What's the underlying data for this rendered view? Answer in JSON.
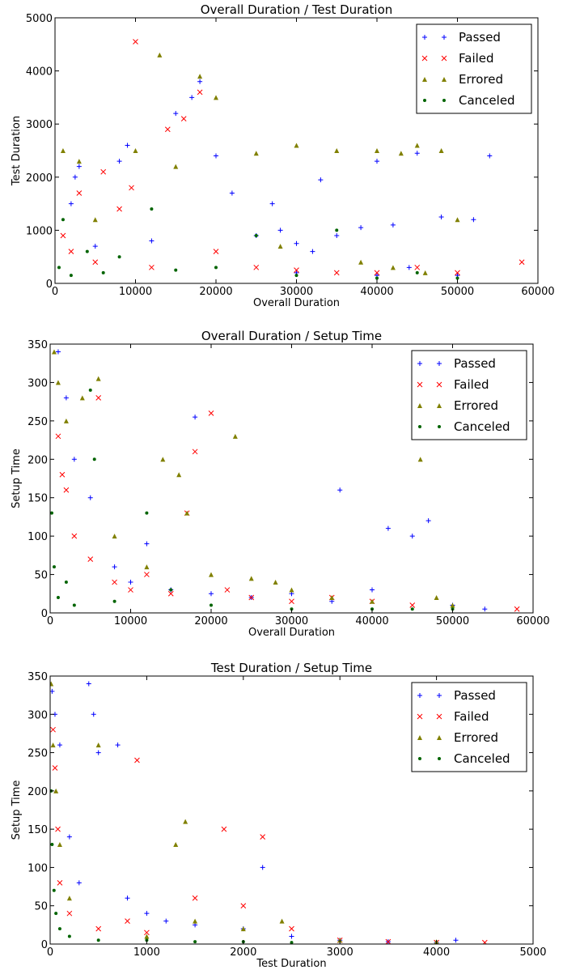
{
  "chart_data": [
    {
      "type": "scatter",
      "title": "Overall Duration / Test Duration",
      "xlabel": "Overall Duration",
      "ylabel": "Test Duration",
      "xlim": [
        0,
        60000
      ],
      "ylim": [
        0,
        5000
      ],
      "xticks": [
        "0",
        "10000",
        "20000",
        "30000",
        "40000",
        "50000",
        "60000"
      ],
      "yticks": [
        "0",
        "1000",
        "2000",
        "3000",
        "4000",
        "5000"
      ],
      "grid": false,
      "legend_position": "top-right",
      "series": [
        {
          "name": "Passed",
          "marker": "cross",
          "color": "#0000ff",
          "points": [
            [
              2000,
              1500
            ],
            [
              2500,
              2000
            ],
            [
              3000,
              2200
            ],
            [
              8000,
              2300
            ],
            [
              9000,
              2600
            ],
            [
              15000,
              3200
            ],
            [
              17000,
              3500
            ],
            [
              18000,
              3800
            ],
            [
              20000,
              2400
            ],
            [
              22000,
              1700
            ],
            [
              25000,
              900
            ],
            [
              28000,
              1000
            ],
            [
              30000,
              750
            ],
            [
              32000,
              600
            ],
            [
              35000,
              900
            ],
            [
              38000,
              1050
            ],
            [
              40000,
              2300
            ],
            [
              42000,
              1100
            ],
            [
              45000,
              2450
            ],
            [
              48000,
              1250
            ],
            [
              50000,
              150
            ],
            [
              52000,
              1200
            ],
            [
              54000,
              2400
            ],
            [
              30000,
              200
            ],
            [
              40000,
              150
            ],
            [
              12000,
              800
            ],
            [
              5000,
              700
            ],
            [
              27000,
              1500
            ],
            [
              33000,
              1950
            ],
            [
              44000,
              300
            ]
          ]
        },
        {
          "name": "Failed",
          "marker": "x",
          "color": "#ff0000",
          "points": [
            [
              1000,
              900
            ],
            [
              2000,
              600
            ],
            [
              3000,
              1700
            ],
            [
              6000,
              2100
            ],
            [
              8000,
              1400
            ],
            [
              9500,
              1800
            ],
            [
              10000,
              4550
            ],
            [
              14000,
              2900
            ],
            [
              16000,
              3100
            ],
            [
              18000,
              3600
            ],
            [
              20000,
              600
            ],
            [
              25000,
              300
            ],
            [
              30000,
              250
            ],
            [
              35000,
              200
            ],
            [
              40000,
              200
            ],
            [
              45000,
              300
            ],
            [
              50000,
              200
            ],
            [
              58000,
              400
            ],
            [
              5000,
              400
            ],
            [
              12000,
              300
            ]
          ]
        },
        {
          "name": "Errored",
          "marker": "triangle",
          "color": "#808000",
          "points": [
            [
              1000,
              2500
            ],
            [
              3000,
              2300
            ],
            [
              5000,
              1200
            ],
            [
              10000,
              2500
            ],
            [
              13000,
              4300
            ],
            [
              15000,
              2200
            ],
            [
              18000,
              3900
            ],
            [
              20000,
              3500
            ],
            [
              25000,
              2450
            ],
            [
              30000,
              2600
            ],
            [
              35000,
              2500
            ],
            [
              40000,
              2500
            ],
            [
              43000,
              2450
            ],
            [
              45000,
              2600
            ],
            [
              50000,
              1200
            ],
            [
              48000,
              2500
            ],
            [
              28000,
              700
            ],
            [
              38000,
              400
            ],
            [
              42000,
              300
            ],
            [
              46000,
              200
            ]
          ]
        },
        {
          "name": "Canceled",
          "marker": "dot",
          "color": "#006400",
          "points": [
            [
              500,
              300
            ],
            [
              1000,
              1200
            ],
            [
              2000,
              150
            ],
            [
              4000,
              600
            ],
            [
              6000,
              200
            ],
            [
              8000,
              500
            ],
            [
              12000,
              1400
            ],
            [
              20000,
              300
            ],
            [
              30000,
              150
            ],
            [
              40000,
              100
            ],
            [
              45000,
              200
            ],
            [
              50000,
              100
            ],
            [
              25000,
              900
            ],
            [
              15000,
              250
            ],
            [
              35000,
              1000
            ]
          ]
        }
      ]
    },
    {
      "type": "scatter",
      "title": "Overall Duration / Setup Time",
      "xlabel": "Overall Duration",
      "ylabel": "Setup Time",
      "xlim": [
        0,
        60000
      ],
      "ylim": [
        0,
        350
      ],
      "xticks": [
        "0",
        "10000",
        "20000",
        "30000",
        "40000",
        "50000",
        "60000"
      ],
      "yticks": [
        "0",
        "50",
        "100",
        "150",
        "200",
        "250",
        "300",
        "350"
      ],
      "grid": false,
      "legend_position": "top-right",
      "series": [
        {
          "name": "Passed",
          "marker": "cross",
          "color": "#0000ff",
          "points": [
            [
              1000,
              340
            ],
            [
              2000,
              280
            ],
            [
              3000,
              200
            ],
            [
              5000,
              150
            ],
            [
              8000,
              60
            ],
            [
              10000,
              40
            ],
            [
              15000,
              30
            ],
            [
              20000,
              25
            ],
            [
              25000,
              20
            ],
            [
              30000,
              25
            ],
            [
              35000,
              15
            ],
            [
              36000,
              160
            ],
            [
              40000,
              30
            ],
            [
              42000,
              110
            ],
            [
              45000,
              100
            ],
            [
              47000,
              120
            ],
            [
              50000,
              10
            ],
            [
              54000,
              5
            ],
            [
              18000,
              255
            ],
            [
              12000,
              90
            ]
          ]
        },
        {
          "name": "Failed",
          "marker": "x",
          "color": "#ff0000",
          "points": [
            [
              1000,
              230
            ],
            [
              1500,
              180
            ],
            [
              2000,
              160
            ],
            [
              3000,
              100
            ],
            [
              5000,
              70
            ],
            [
              8000,
              40
            ],
            [
              10000,
              30
            ],
            [
              15000,
              25
            ],
            [
              17000,
              130
            ],
            [
              20000,
              260
            ],
            [
              22000,
              30
            ],
            [
              25000,
              20
            ],
            [
              30000,
              15
            ],
            [
              35000,
              20
            ],
            [
              40000,
              15
            ],
            [
              45000,
              10
            ],
            [
              58000,
              5
            ],
            [
              6000,
              280
            ],
            [
              18000,
              210
            ],
            [
              12000,
              50
            ]
          ]
        },
        {
          "name": "Errored",
          "marker": "triangle",
          "color": "#808000",
          "points": [
            [
              500,
              340
            ],
            [
              1000,
              300
            ],
            [
              2000,
              250
            ],
            [
              4000,
              280
            ],
            [
              6000,
              305
            ],
            [
              8000,
              100
            ],
            [
              12000,
              60
            ],
            [
              14000,
              200
            ],
            [
              16000,
              180
            ],
            [
              17000,
              130
            ],
            [
              23000,
              230
            ],
            [
              25000,
              45
            ],
            [
              30000,
              30
            ],
            [
              35000,
              20
            ],
            [
              40000,
              15
            ],
            [
              46000,
              200
            ],
            [
              48000,
              20
            ],
            [
              50000,
              10
            ],
            [
              20000,
              50
            ],
            [
              28000,
              40
            ]
          ]
        },
        {
          "name": "Canceled",
          "marker": "dot",
          "color": "#006400",
          "points": [
            [
              200,
              130
            ],
            [
              500,
              60
            ],
            [
              1000,
              20
            ],
            [
              2000,
              40
            ],
            [
              3000,
              10
            ],
            [
              5000,
              290
            ],
            [
              5500,
              200
            ],
            [
              8000,
              15
            ],
            [
              12000,
              130
            ],
            [
              15000,
              30
            ],
            [
              20000,
              10
            ],
            [
              30000,
              5
            ],
            [
              40000,
              5
            ],
            [
              45000,
              5
            ],
            [
              50000,
              5
            ]
          ]
        }
      ]
    },
    {
      "type": "scatter",
      "title": "Test Duration / Setup Time",
      "xlabel": "Test Duration",
      "ylabel": "Setup Time",
      "xlim": [
        0,
        5000
      ],
      "ylim": [
        0,
        350
      ],
      "xticks": [
        "0",
        "1000",
        "2000",
        "3000",
        "4000",
        "5000"
      ],
      "yticks": [
        "0",
        "50",
        "100",
        "150",
        "200",
        "250",
        "300",
        "350"
      ],
      "grid": false,
      "legend_position": "top-right",
      "series": [
        {
          "name": "Passed",
          "marker": "cross",
          "color": "#0000ff",
          "points": [
            [
              20,
              330
            ],
            [
              50,
              300
            ],
            [
              100,
              260
            ],
            [
              200,
              140
            ],
            [
              300,
              80
            ],
            [
              400,
              340
            ],
            [
              450,
              300
            ],
            [
              500,
              250
            ],
            [
              700,
              260
            ],
            [
              800,
              60
            ],
            [
              1000,
              40
            ],
            [
              1200,
              30
            ],
            [
              1500,
              25
            ],
            [
              2000,
              20
            ],
            [
              2200,
              100
            ],
            [
              2500,
              10
            ],
            [
              3000,
              5
            ],
            [
              3500,
              3
            ],
            [
              4000,
              2
            ],
            [
              4200,
              5
            ]
          ]
        },
        {
          "name": "Failed",
          "marker": "x",
          "color": "#ff0000",
          "points": [
            [
              30,
              280
            ],
            [
              50,
              230
            ],
            [
              80,
              150
            ],
            [
              100,
              80
            ],
            [
              200,
              40
            ],
            [
              500,
              20
            ],
            [
              800,
              30
            ],
            [
              900,
              240
            ],
            [
              1000,
              15
            ],
            [
              1500,
              60
            ],
            [
              1800,
              150
            ],
            [
              2000,
              50
            ],
            [
              2200,
              140
            ],
            [
              2500,
              20
            ],
            [
              3000,
              5
            ],
            [
              3500,
              3
            ],
            [
              4000,
              2
            ],
            [
              4500,
              2
            ]
          ]
        },
        {
          "name": "Errored",
          "marker": "triangle",
          "color": "#808000",
          "points": [
            [
              10,
              340
            ],
            [
              30,
              260
            ],
            [
              60,
              200
            ],
            [
              100,
              130
            ],
            [
              200,
              60
            ],
            [
              500,
              260
            ],
            [
              1000,
              10
            ],
            [
              1300,
              130
            ],
            [
              1400,
              160
            ],
            [
              1500,
              30
            ],
            [
              2000,
              20
            ],
            [
              2400,
              30
            ],
            [
              3000,
              5
            ],
            [
              4000,
              3
            ]
          ]
        },
        {
          "name": "Canceled",
          "marker": "dot",
          "color": "#006400",
          "points": [
            [
              10,
              200
            ],
            [
              20,
              130
            ],
            [
              40,
              70
            ],
            [
              60,
              40
            ],
            [
              100,
              20
            ],
            [
              200,
              10
            ],
            [
              500,
              5
            ],
            [
              1000,
              5
            ],
            [
              1500,
              3
            ],
            [
              2000,
              3
            ],
            [
              2500,
              2
            ]
          ]
        }
      ]
    }
  ]
}
